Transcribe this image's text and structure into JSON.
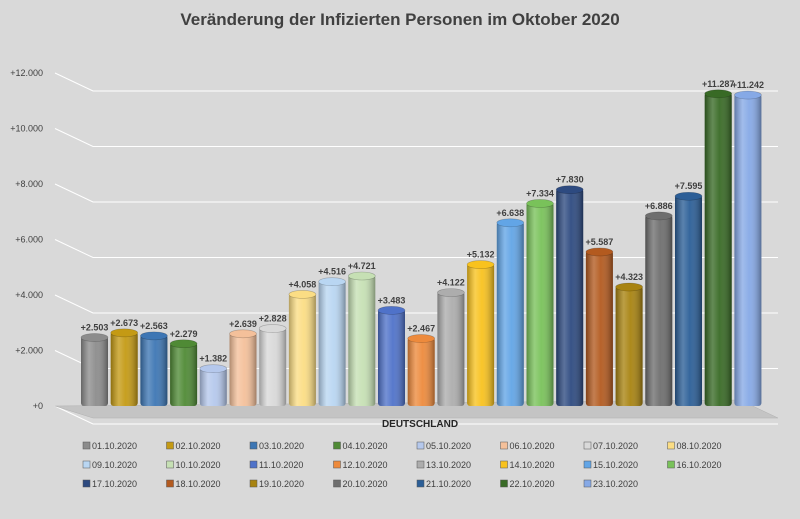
{
  "chart_data": {
    "type": "bar",
    "title": "Veränderung der Infizierten Personen im Oktober 2020",
    "xlabel": "DEUTSCHLAND",
    "ylabel": "",
    "ylim": [
      0,
      12000
    ],
    "yticks": [
      0,
      2000,
      4000,
      6000,
      8000,
      10000,
      12000
    ],
    "ytick_labels": [
      "+0",
      "+2.000",
      "+4.000",
      "+6.000",
      "+8.000",
      "+10.000",
      "+12.000"
    ],
    "grid": true,
    "legend_position": "bottom",
    "categories": [
      "DEUTSCHLAND"
    ],
    "series": [
      {
        "name": "01.10.2020",
        "value": 2503,
        "label": "+2.503",
        "color": "#8c8c8c"
      },
      {
        "name": "02.10.2020",
        "value": 2673,
        "label": "+2.673",
        "color": "#c49a14"
      },
      {
        "name": "03.10.2020",
        "value": 2563,
        "label": "+2.563",
        "color": "#3d76b4"
      },
      {
        "name": "04.10.2020",
        "value": 2279,
        "label": "+2.279",
        "color": "#4f8a35"
      },
      {
        "name": "05.10.2020",
        "value": 1382,
        "label": "+1.382",
        "color": "#b5c8ec"
      },
      {
        "name": "06.10.2020",
        "value": 2639,
        "label": "+2.639",
        "color": "#f4c09a"
      },
      {
        "name": "07.10.2020",
        "value": 2828,
        "label": "+2.828",
        "color": "#d9d9d9"
      },
      {
        "name": "08.10.2020",
        "value": 4058,
        "label": "+4.058",
        "color": "#fbdd84"
      },
      {
        "name": "09.10.2020",
        "value": 4516,
        "label": "+4.516",
        "color": "#b9d6f2"
      },
      {
        "name": "10.10.2020",
        "value": 4721,
        "label": "+4.721",
        "color": "#c6e0b4"
      },
      {
        "name": "11.10.2020",
        "value": 3483,
        "label": "+3.483",
        "color": "#4f72c9"
      },
      {
        "name": "12.10.2020",
        "value": 2467,
        "label": "+2.467",
        "color": "#ed8a3c"
      },
      {
        "name": "13.10.2020",
        "value": 4122,
        "label": "+4.122",
        "color": "#adadad"
      },
      {
        "name": "14.10.2020",
        "value": 5132,
        "label": "+5.132",
        "color": "#f8c21e"
      },
      {
        "name": "15.10.2020",
        "value": 6638,
        "label": "+6.638",
        "color": "#62a5e6"
      },
      {
        "name": "16.10.2020",
        "value": 7334,
        "label": "+7.334",
        "color": "#79c25a"
      },
      {
        "name": "17.10.2020",
        "value": 7830,
        "label": "+7.830",
        "color": "#2d4a80"
      },
      {
        "name": "18.10.2020",
        "value": 5587,
        "label": "+5.587",
        "color": "#b35a1f"
      },
      {
        "name": "19.10.2020",
        "value": 4323,
        "label": "+4.323",
        "color": "#a88310"
      },
      {
        "name": "20.10.2020",
        "value": 6886,
        "label": "+6.886",
        "color": "#6e6e6e"
      },
      {
        "name": "21.10.2020",
        "value": 7595,
        "label": "+7.595",
        "color": "#2b5e97"
      },
      {
        "name": "22.10.2020",
        "value": 11287,
        "label": "+11.287",
        "color": "#386a25"
      },
      {
        "name": "23.10.2020",
        "value": 11242,
        "label": "+11.242",
        "color": "#86a9e6"
      }
    ]
  }
}
